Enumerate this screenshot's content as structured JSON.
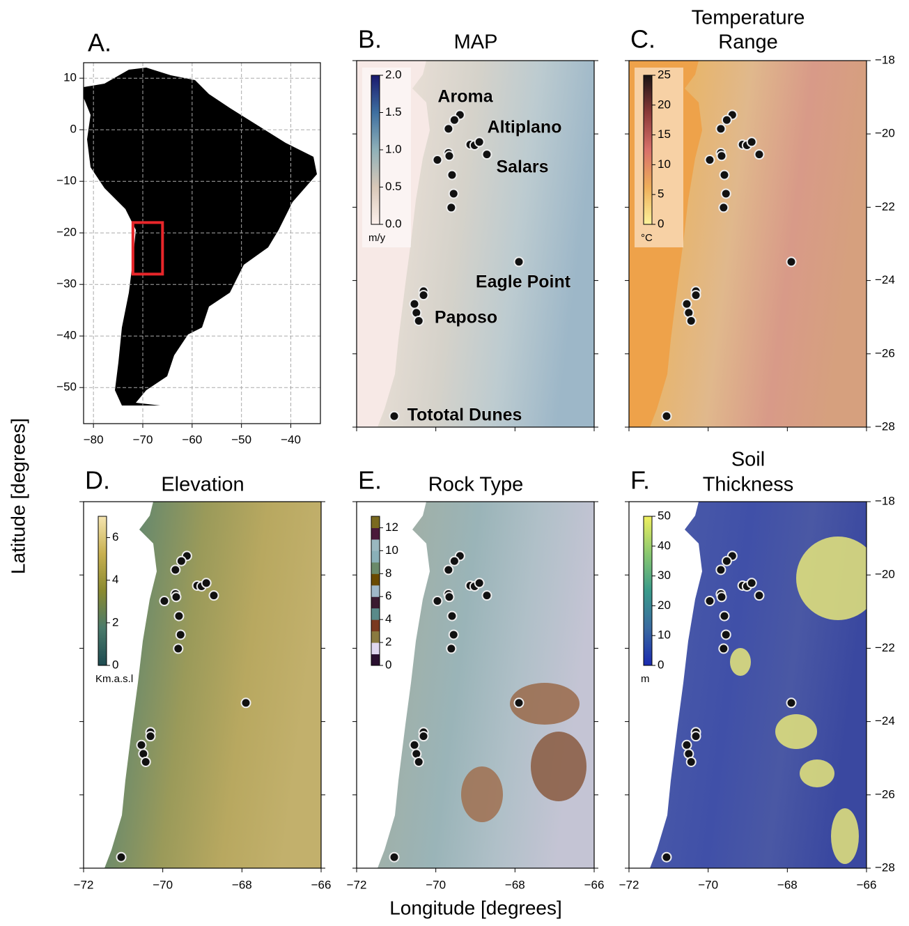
{
  "figure": {
    "x_label": "Longitude [degrees]",
    "y_label": "Latitude [degrees]"
  },
  "overview": {
    "letter": "A.",
    "xlim": [
      -82,
      -34
    ],
    "ylim": [
      -57,
      13
    ],
    "xticks": [
      {
        "value": -80,
        "label": "−80"
      },
      {
        "value": -70,
        "label": "−70"
      },
      {
        "value": -60,
        "label": "−60"
      },
      {
        "value": -50,
        "label": "−50"
      },
      {
        "value": -40,
        "label": "−40"
      }
    ],
    "yticks": [
      10,
      0,
      {
        "value": -10,
        "label": "−10"
      },
      {
        "value": -20,
        "label": "−20"
      },
      {
        "value": -30,
        "label": "−30"
      },
      {
        "value": -40,
        "label": "−40"
      },
      {
        "value": -50,
        "label": "−50"
      }
    ],
    "grid": true,
    "region": {
      "lon": [
        -72,
        -66
      ],
      "lat": [
        -28,
        -18
      ],
      "color": "#e8262a"
    }
  },
  "maps": {
    "xlim": [
      -72,
      -66
    ],
    "ylim": [
      -28,
      -18
    ],
    "xticks": [
      {
        "value": -72,
        "label": "−72"
      },
      {
        "value": -70,
        "label": "−70"
      },
      {
        "value": -68,
        "label": "−68"
      },
      {
        "value": -66,
        "label": "−66"
      }
    ],
    "yticks": [
      {
        "value": -18,
        "label": "−18"
      },
      {
        "value": -20,
        "label": "−20"
      },
      {
        "value": -22,
        "label": "−22"
      },
      {
        "value": -24,
        "label": "−24"
      },
      {
        "value": -26,
        "label": "−26"
      },
      {
        "value": -28,
        "label": "−28"
      }
    ]
  },
  "sites": [
    {
      "lon": -69.39,
      "lat": -19.48
    },
    {
      "lon": -69.53,
      "lat": -19.62
    },
    {
      "lon": -69.68,
      "lat": -19.86
    },
    {
      "lon": -69.68,
      "lat": -20.52
    },
    {
      "lon": -69.66,
      "lat": -20.6
    },
    {
      "lon": -69.96,
      "lat": -20.71
    },
    {
      "lon": -69.13,
      "lat": -20.29
    },
    {
      "lon": -69.02,
      "lat": -20.31
    },
    {
      "lon": -68.9,
      "lat": -20.22
    },
    {
      "lon": -68.71,
      "lat": -20.56
    },
    {
      "lon": -69.59,
      "lat": -21.12
    },
    {
      "lon": -69.55,
      "lat": -21.63
    },
    {
      "lon": -69.61,
      "lat": -22.01
    },
    {
      "lon": -67.9,
      "lat": -23.49
    },
    {
      "lon": -70.31,
      "lat": -24.29
    },
    {
      "lon": -70.31,
      "lat": -24.4
    },
    {
      "lon": -70.54,
      "lat": -24.64
    },
    {
      "lon": -70.49,
      "lat": -24.88
    },
    {
      "lon": -70.43,
      "lat": -25.1
    },
    {
      "lon": -71.05,
      "lat": -27.7
    }
  ],
  "place_labels": [
    "Aroma",
    "Altiplano",
    "Salars",
    "Eagle Point",
    "Paposo",
    "Tototal Dunes"
  ],
  "panels": [
    {
      "letter": "B.",
      "title": [
        "MAP"
      ],
      "colorbar": {
        "lim": [
          0,
          2
        ],
        "unit": "m/y",
        "ticks": [
          {
            "value": 0,
            "label": "0.0"
          },
          {
            "value": 0.5,
            "label": "0.5"
          },
          {
            "value": 1,
            "label": "1.0"
          },
          {
            "value": 1.5,
            "label": "1.5"
          },
          {
            "value": 2,
            "label": "2.0"
          }
        ],
        "colors": [
          "#fdf0ec",
          "#d9c8b8",
          "#8fb0b8",
          "#3e6fa0",
          "#1a1a6e"
        ]
      }
    },
    {
      "letter": "C.",
      "title": [
        "Temperature",
        "Range"
      ],
      "colorbar": {
        "lim": [
          0,
          25
        ],
        "unit": "°C",
        "ticks": [
          0,
          5,
          10,
          15,
          20,
          25
        ],
        "colors": [
          "#fdf29a",
          "#eeae5a",
          "#d8706a",
          "#8a3a38",
          "#1a1414"
        ]
      }
    },
    {
      "letter": "D.",
      "title": [
        "Elevation"
      ],
      "colorbar": {
        "lim": [
          0,
          7
        ],
        "unit": "Km.a.s.l",
        "ticks": [
          0,
          2,
          4,
          6
        ],
        "colors": [
          "#1d4a50",
          "#4a7a6a",
          "#8a8a30",
          "#c8b050",
          "#f5e5b0"
        ]
      }
    },
    {
      "letter": "E.",
      "title": [
        "Rock Type"
      ],
      "colorbar": {
        "lim": [
          0,
          13
        ],
        "ticks": [
          0,
          2,
          4,
          6,
          8,
          10,
          12
        ],
        "colors": [
          "#2a1030",
          "#e0d8f0",
          "#8a7a40",
          "#7a3a20",
          "#5a8a8a",
          "#3a1a30",
          "#a0b8c8",
          "#6a4a00",
          "#6a8a6a",
          "#8ab0b8",
          "#9ab8c0",
          "#4a1a3a",
          "#7a6a20"
        ]
      }
    },
    {
      "letter": "F.",
      "title": [
        "Soil",
        "Thickness"
      ],
      "colorbar": {
        "lim": [
          0,
          50
        ],
        "unit": "m",
        "ticks": [
          0,
          10,
          20,
          30,
          40,
          50
        ],
        "colors": [
          "#1a2ab0",
          "#3a6aa0",
          "#3a9a8a",
          "#8ac870",
          "#f0f060"
        ]
      }
    }
  ]
}
